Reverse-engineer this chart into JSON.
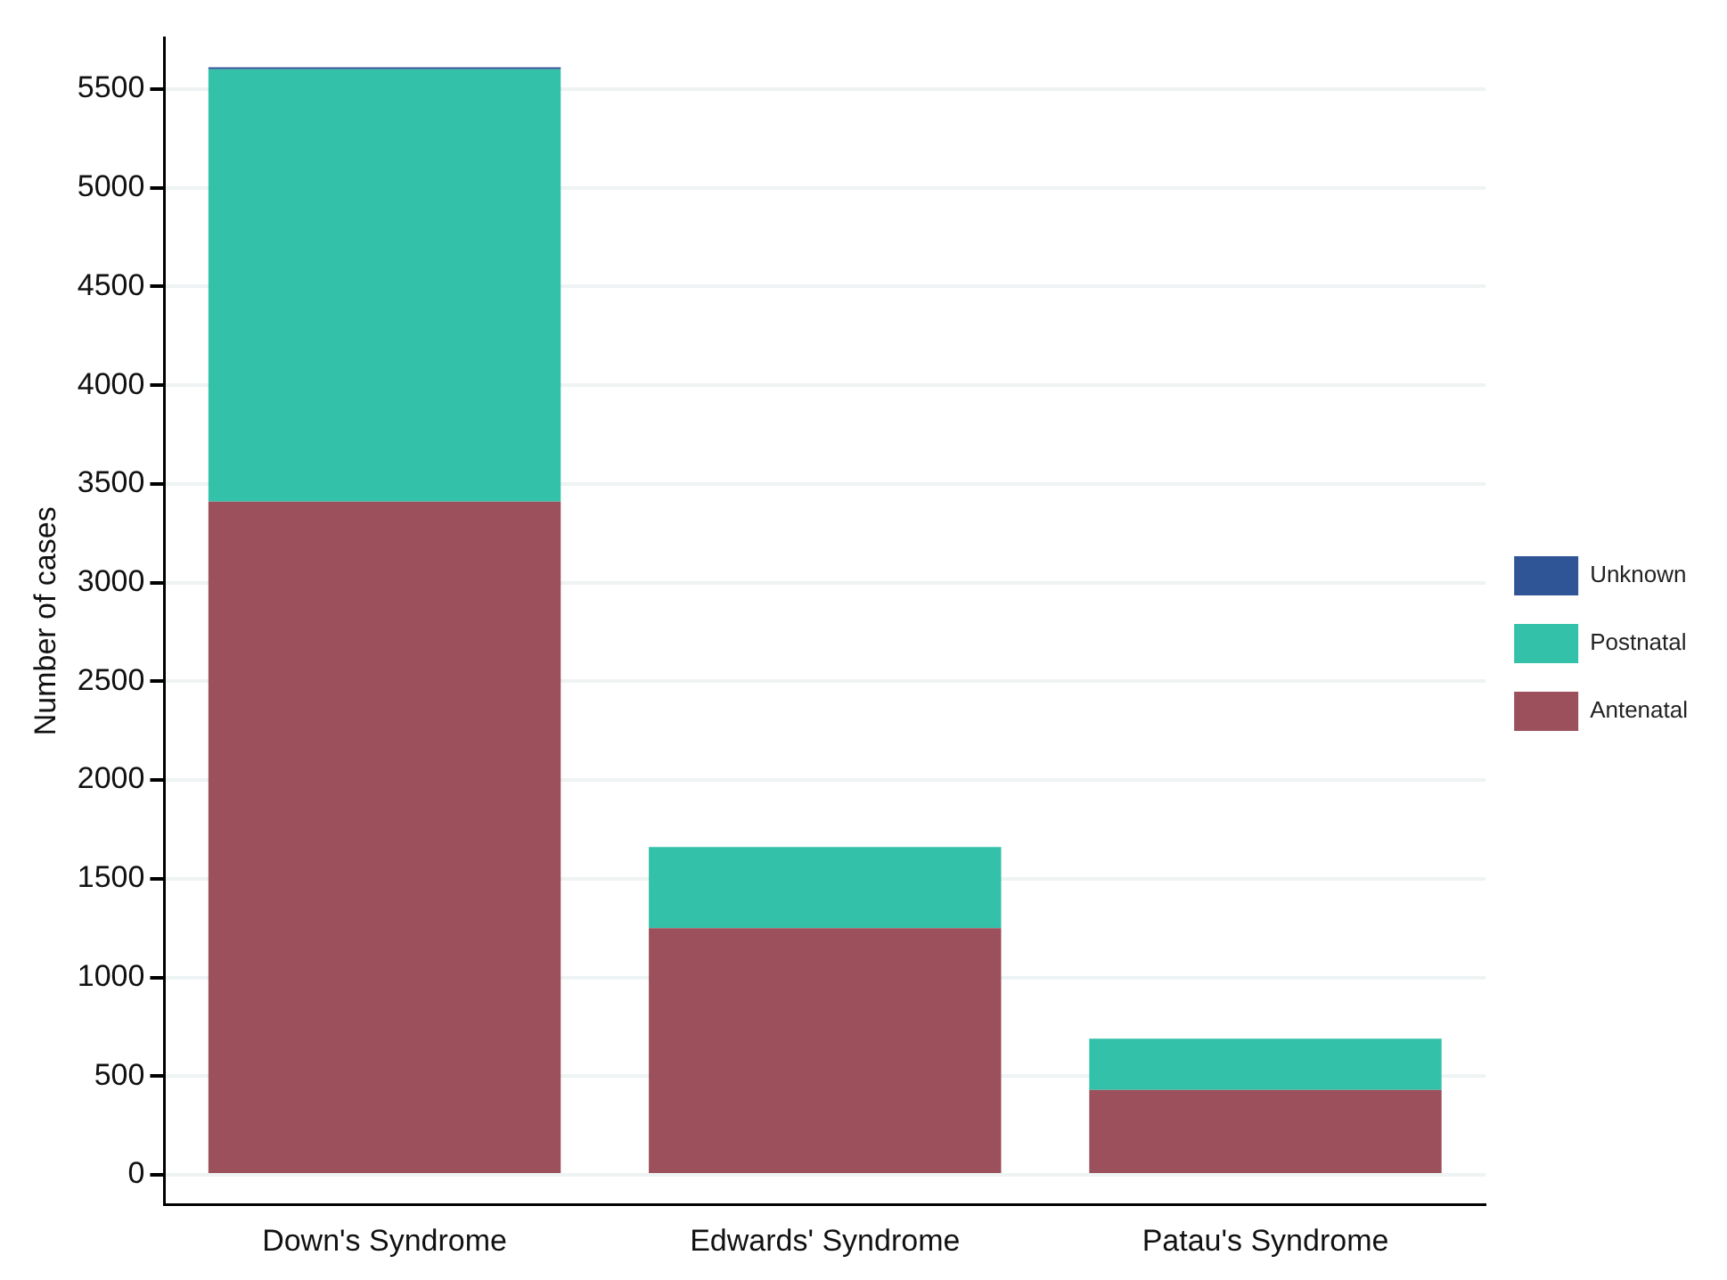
{
  "chart_data": {
    "type": "bar",
    "ylabel": "Number of cases",
    "categories": [
      "Down's Syndrome",
      "Edwards' Syndrome",
      "Patau's Syndrome"
    ],
    "stacked": true,
    "series": [
      {
        "name": "Antenatal",
        "color": "#9b505b",
        "values": [
          3410,
          1250,
          430
        ]
      },
      {
        "name": "Postnatal",
        "color": "#33c1a9",
        "values": [
          2190,
          410,
          260
        ]
      },
      {
        "name": "Unknown",
        "color": "#2f5597",
        "values": [
          10,
          0,
          0
        ]
      }
    ],
    "ylim": [
      -150,
      5760
    ],
    "yticks": [
      0,
      500,
      1000,
      1500,
      2000,
      2500,
      3000,
      3500,
      4000,
      4500,
      5000,
      5500
    ],
    "grid": "y",
    "legend": "right"
  }
}
